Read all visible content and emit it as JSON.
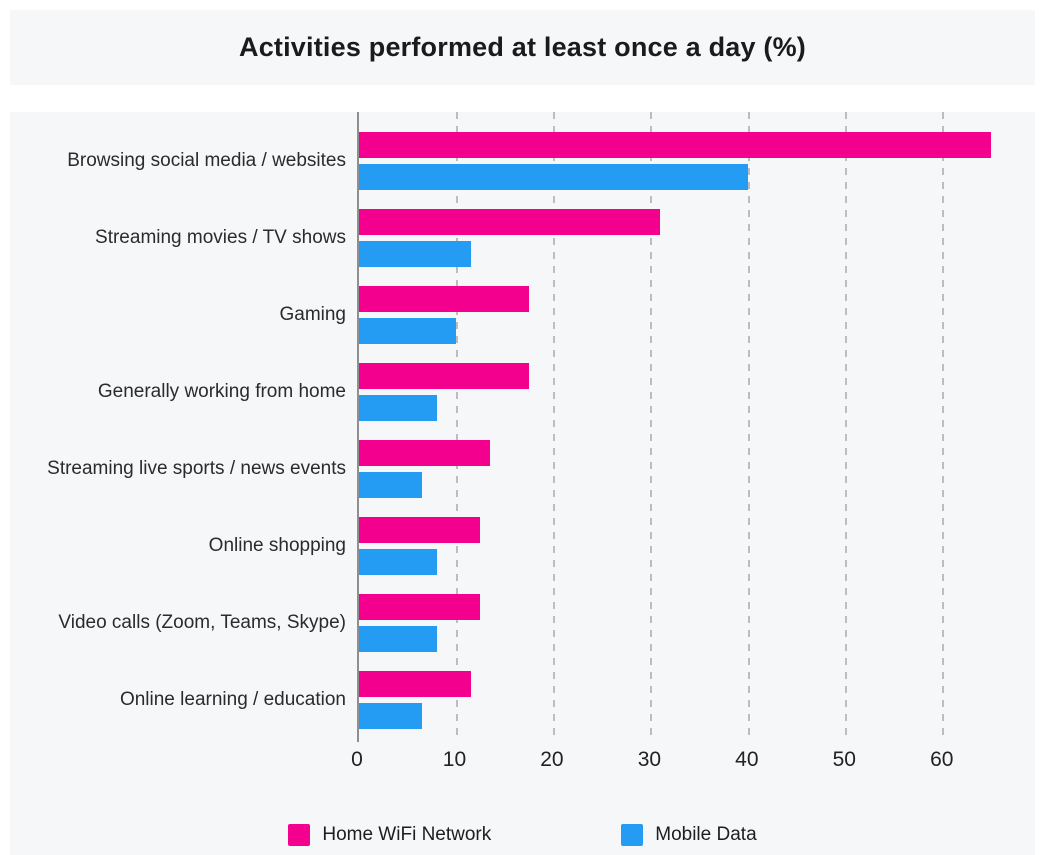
{
  "title": "Activities performed at least once a day (%)",
  "chart_data": {
    "type": "bar",
    "orientation": "horizontal",
    "title": "Activities performed at least once a day (%)",
    "categories": [
      "Browsing social media / websites",
      "Streaming movies / TV shows",
      "Gaming",
      "Generally working from home",
      "Streaming live sports / news events",
      "Online shopping",
      "Video calls (Zoom, Teams, Skype)",
      "Online learning / education"
    ],
    "series": [
      {
        "name": "Home WiFi Network",
        "color": "#f4008f",
        "values": [
          65,
          31,
          17.5,
          17.5,
          13.5,
          12.5,
          12.5,
          11.5
        ]
      },
      {
        "name": "Mobile Data",
        "color": "#249cf4",
        "values": [
          40,
          11.5,
          10,
          8,
          6.5,
          8,
          8,
          6.5
        ]
      }
    ],
    "x_ticks": [
      0,
      10,
      20,
      30,
      40,
      50,
      60
    ],
    "x_max": 67,
    "xlabel": "",
    "ylabel": "",
    "grid": "vertical-dashed",
    "legend_position": "bottom"
  },
  "colors": {
    "card_bg": "#f6f7f8",
    "axis_line": "#8f8f8f",
    "gridline": "#bdbdbd",
    "title_text": "#1b1b1b",
    "label_text": "#2b2b2b"
  }
}
